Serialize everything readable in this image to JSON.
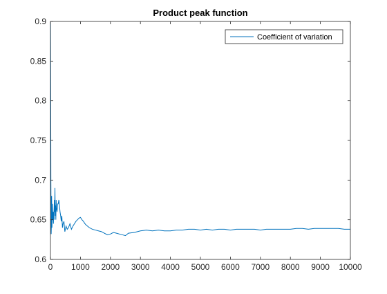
{
  "chart_data": {
    "type": "line",
    "title": "Product peak function",
    "xlabel": "",
    "ylabel": "",
    "xlim": [
      0,
      10000
    ],
    "ylim": [
      0.6,
      0.9
    ],
    "xticks": [
      0,
      1000,
      2000,
      3000,
      4000,
      5000,
      6000,
      7000,
      8000,
      9000,
      10000
    ],
    "yticks": [
      0.6,
      0.65,
      0.7,
      0.75,
      0.8,
      0.85,
      0.9
    ],
    "grid": false,
    "legend_position": "top-right",
    "series": [
      {
        "name": "Coefficient of variation",
        "color": "#0072BD",
        "x": [
          1,
          5,
          10,
          15,
          20,
          25,
          30,
          40,
          50,
          60,
          70,
          80,
          90,
          100,
          110,
          120,
          130,
          140,
          150,
          160,
          170,
          180,
          190,
          200,
          220,
          240,
          260,
          280,
          300,
          320,
          340,
          360,
          380,
          400,
          420,
          450,
          480,
          520,
          560,
          600,
          650,
          700,
          750,
          800,
          850,
          900,
          950,
          1000,
          1050,
          1100,
          1150,
          1200,
          1300,
          1400,
          1500,
          1600,
          1700,
          1800,
          1900,
          2000,
          2100,
          2200,
          2300,
          2400,
          2500,
          2600,
          2800,
          3000,
          3200,
          3400,
          3600,
          3800,
          4000,
          4200,
          4400,
          4600,
          4800,
          5000,
          5200,
          5400,
          5600,
          5800,
          6000,
          6200,
          6400,
          6600,
          6800,
          7000,
          7200,
          7400,
          7600,
          7800,
          8000,
          8200,
          8400,
          8600,
          8800,
          9000,
          9200,
          9400,
          9600,
          9800,
          10000
        ],
        "values": [
          0.9,
          0.86,
          0.8,
          0.7,
          0.66,
          0.632,
          0.64,
          0.68,
          0.64,
          0.66,
          0.65,
          0.67,
          0.655,
          0.645,
          0.66,
          0.65,
          0.675,
          0.66,
          0.69,
          0.655,
          0.668,
          0.65,
          0.675,
          0.665,
          0.66,
          0.67,
          0.67,
          0.675,
          0.668,
          0.66,
          0.655,
          0.648,
          0.655,
          0.64,
          0.645,
          0.648,
          0.635,
          0.642,
          0.638,
          0.64,
          0.645,
          0.638,
          0.642,
          0.645,
          0.648,
          0.65,
          0.652,
          0.653,
          0.65,
          0.648,
          0.645,
          0.643,
          0.64,
          0.638,
          0.637,
          0.636,
          0.635,
          0.633,
          0.631,
          0.632,
          0.634,
          0.633,
          0.632,
          0.631,
          0.63,
          0.633,
          0.634,
          0.636,
          0.637,
          0.636,
          0.637,
          0.636,
          0.636,
          0.637,
          0.637,
          0.638,
          0.638,
          0.637,
          0.638,
          0.637,
          0.638,
          0.638,
          0.637,
          0.638,
          0.638,
          0.638,
          0.638,
          0.637,
          0.638,
          0.638,
          0.638,
          0.638,
          0.638,
          0.639,
          0.639,
          0.638,
          0.639,
          0.639,
          0.639,
          0.639,
          0.639,
          0.638,
          0.638
        ]
      }
    ]
  }
}
